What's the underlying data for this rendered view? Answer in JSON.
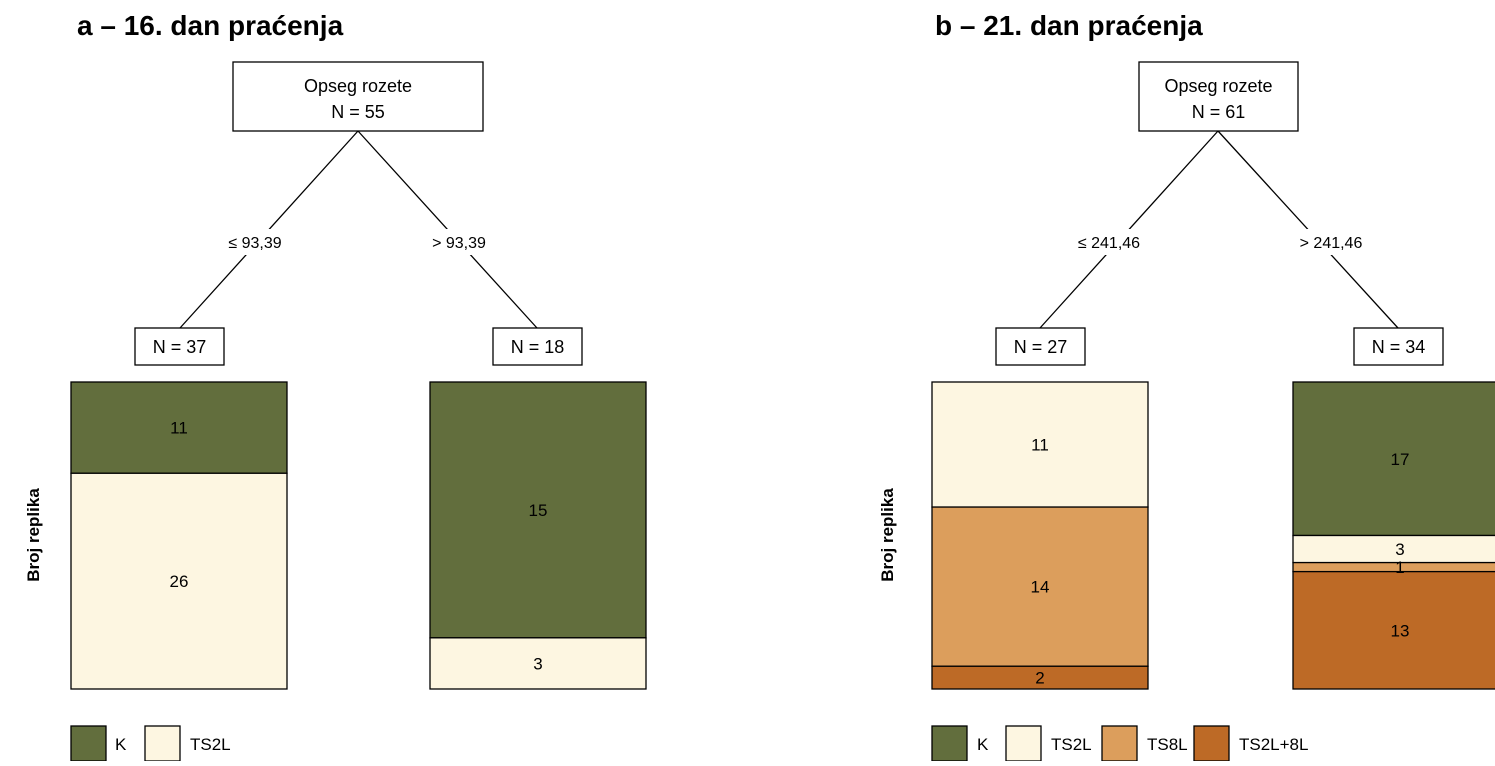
{
  "colors": {
    "K": "#626e3d",
    "TS2L": "#fdf6e1",
    "TS8L": "#dc9e5c",
    "TS2L+8L": "#bd6a26"
  },
  "panels": [
    {
      "title": "a – 16. dan praćenja",
      "root": {
        "label": "Opseg rozete",
        "n": "N = 55"
      },
      "split": {
        "left": "≤ 93,39",
        "right": "> 93,39"
      },
      "leaves": [
        {
          "n_label": "N = 37",
          "total": 37,
          "segments": [
            {
              "cls": "K",
              "count": 11,
              "label": "11"
            },
            {
              "cls": "TS2L",
              "count": 26,
              "label": "26"
            }
          ]
        },
        {
          "n_label": "N = 18",
          "total": 18,
          "segments": [
            {
              "cls": "K",
              "count": 15,
              "label": "15"
            },
            {
              "cls": "TS2L",
              "count": 3,
              "label": "3"
            }
          ]
        }
      ],
      "ylabel": "Broj replika",
      "legend": [
        "K",
        "TS2L"
      ]
    },
    {
      "title": "b – 21. dan praćenja",
      "root": {
        "label": "Opseg rozete",
        "n": "N = 61"
      },
      "split": {
        "left": "≤ 241,46",
        "right": "> 241,46"
      },
      "leaves": [
        {
          "n_label": "N = 27",
          "total": 27,
          "segments": [
            {
              "cls": "TS2L",
              "count": 11,
              "label": "11"
            },
            {
              "cls": "TS8L",
              "count": 14,
              "label": "14"
            },
            {
              "cls": "TS2L+8L",
              "count": 2,
              "label": "2"
            }
          ]
        },
        {
          "n_label": "N = 34",
          "total": 34,
          "segments": [
            {
              "cls": "K",
              "count": 17,
              "label": "17"
            },
            {
              "cls": "TS2L",
              "count": 3,
              "label": "3"
            },
            {
              "cls": "TS8L",
              "count": 1,
              "label": "1"
            },
            {
              "cls": "TS2L+8L",
              "count": 13,
              "label": "13"
            }
          ]
        }
      ],
      "ylabel": "Broj replika",
      "legend": [
        "K",
        "TS2L",
        "TS8L",
        "TS2L+8L"
      ]
    }
  ]
}
